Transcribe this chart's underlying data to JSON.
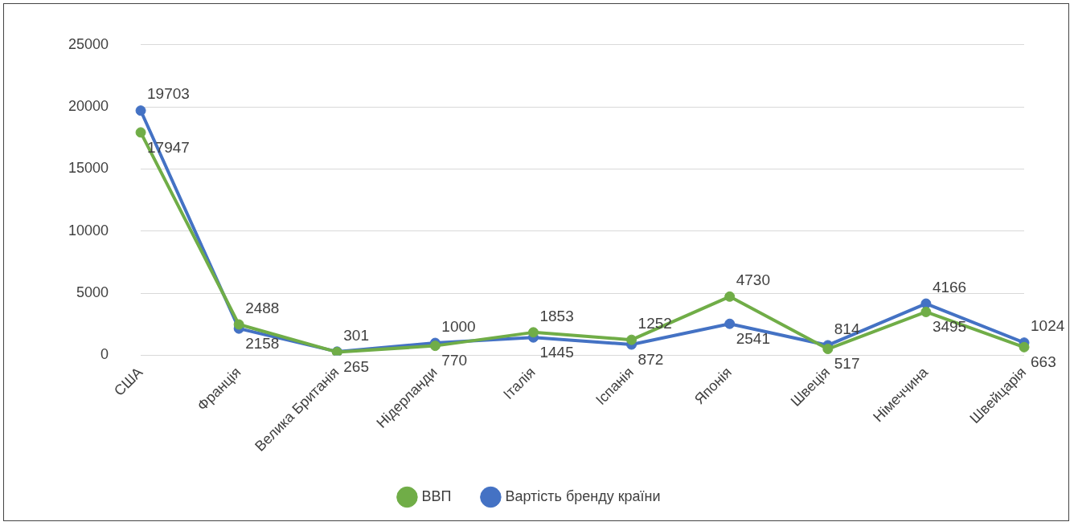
{
  "chart_data": {
    "type": "line",
    "categories": [
      "США",
      "Франція",
      "Велика Британія",
      "Нідерланди",
      "Італія",
      "Іспанія",
      "Японія",
      "Швеція",
      "Німеччина",
      "Швейцарія"
    ],
    "series": [
      {
        "name": "ВВП",
        "color": "#70ad47",
        "values": [
          17947,
          2488,
          265,
          770,
          1853,
          1252,
          4730,
          517,
          3495,
          663
        ]
      },
      {
        "name": "Вартість бренду країни",
        "color": "#4472c4",
        "values": [
          19703,
          2158,
          301,
          1000,
          1445,
          872,
          2541,
          814,
          4166,
          1024
        ]
      }
    ],
    "ylim": [
      0,
      25000
    ],
    "yticks": [
      0,
      5000,
      10000,
      15000,
      20000,
      25000
    ],
    "grid": "y",
    "legend": "bottom",
    "marker": "circle",
    "line_style": "solid",
    "data_labels": true
  }
}
